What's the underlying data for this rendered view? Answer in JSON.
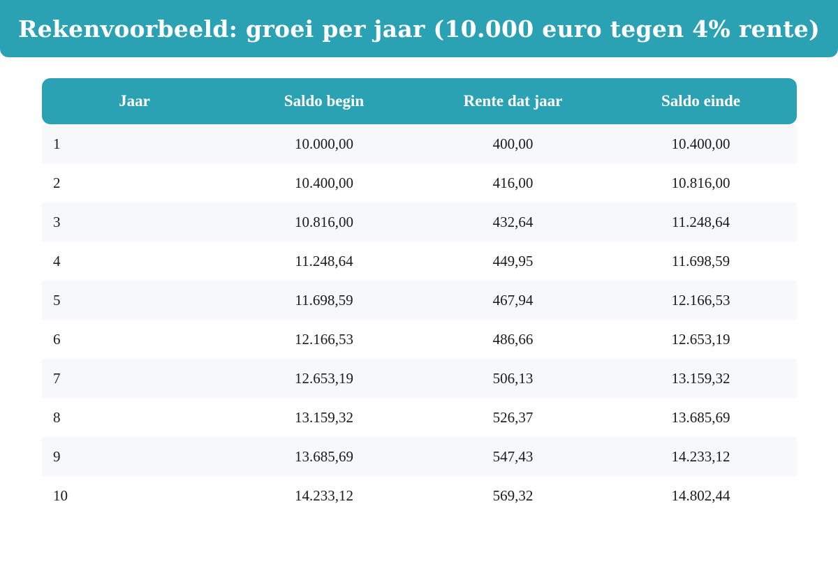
{
  "title": "Rekenvoorbeeld: groei per jaar (10.000 euro tegen 4% rente)",
  "colors": {
    "accent": "#2ba2b4",
    "row_stripe": "#f7f8fa",
    "header_text": "#ffffff"
  },
  "table": {
    "headers": [
      "Jaar",
      "Saldo begin",
      "Rente dat jaar",
      "Saldo einde"
    ],
    "rows": [
      [
        "1",
        "10.000,00",
        "400,00",
        "10.400,00"
      ],
      [
        "2",
        "10.400,00",
        "416,00",
        "10.816,00"
      ],
      [
        "3",
        "10.816,00",
        "432,64",
        "11.248,64"
      ],
      [
        "4",
        "11.248,64",
        "449,95",
        "11.698,59"
      ],
      [
        "5",
        "11.698,59",
        "467,94",
        "12.166,53"
      ],
      [
        "6",
        "12.166,53",
        "486,66",
        "12.653,19"
      ],
      [
        "7",
        "12.653,19",
        "506,13",
        "13.159,32"
      ],
      [
        "8",
        "13.159,32",
        "526,37",
        "13.685,69"
      ],
      [
        "9",
        "13.685,69",
        "547,43",
        "14.233,12"
      ],
      [
        "10",
        "14.233,12",
        "569,32",
        "14.802,44"
      ]
    ]
  }
}
